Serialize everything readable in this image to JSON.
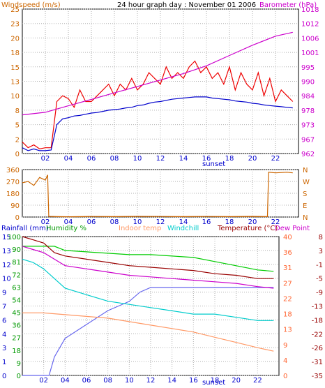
{
  "chart_data": [
    {
      "type": "line",
      "title": "24 hour graph day : November 01 2006",
      "left_axis": {
        "label": "Windspeed (m/s)",
        "color": "#cc6600",
        "ticks": [
          0,
          2,
          5,
          8,
          10,
          13,
          15,
          18,
          20,
          23,
          25
        ],
        "range": [
          0,
          25
        ]
      },
      "right_axis": {
        "label": "Barometer (hPa)",
        "color": "#cc00cc",
        "ticks": [
          962,
          967,
          973,
          978,
          984,
          990,
          995,
          1001,
          1006,
          1012,
          1018
        ],
        "range": [
          962,
          1018
        ]
      },
      "x_ticks": [
        "02",
        "04",
        "06",
        "08",
        "10",
        "12",
        "14",
        "16",
        "18",
        "20",
        "22"
      ],
      "x_annotation": "sunset",
      "grid": true,
      "series": [
        {
          "name": "Windspeed",
          "color": "#ee0000",
          "x": [
            0,
            0.5,
            1,
            1.5,
            2,
            2.5,
            3,
            3.5,
            4,
            4.5,
            5,
            5.5,
            6,
            6.5,
            7,
            7.5,
            8,
            8.5,
            9,
            9.5,
            10,
            10.5,
            11,
            11.5,
            12,
            12.5,
            13,
            13.5,
            14,
            14.5,
            15,
            15.5,
            16,
            16.5,
            17,
            17.5,
            18,
            18.5,
            19,
            19.5,
            20,
            20.5,
            21,
            21.5,
            22,
            22.5,
            23,
            23.5
          ],
          "y": [
            2,
            1,
            1.5,
            0.8,
            1,
            1,
            9,
            10,
            9.5,
            8,
            11,
            9,
            9,
            10,
            11,
            12,
            10,
            12,
            11,
            13,
            11,
            12,
            14,
            13,
            12,
            15,
            13,
            14,
            13,
            15,
            16,
            14,
            15,
            13,
            14,
            12,
            15,
            11,
            14,
            12,
            11,
            14,
            10,
            13,
            9,
            11,
            10,
            9
          ]
        },
        {
          "name": "Windspeed average",
          "color": "#0000cc",
          "x": [
            0,
            0.5,
            1,
            1.5,
            2,
            2.5,
            3,
            3.5,
            4,
            4.5,
            5,
            5.5,
            6,
            6.5,
            7,
            7.5,
            8,
            8.5,
            9,
            9.5,
            10,
            10.5,
            11,
            11.5,
            12,
            12.5,
            13,
            13.5,
            14,
            14.5,
            15,
            15.5,
            16,
            16.5,
            17,
            17.5,
            18,
            18.5,
            19,
            19.5,
            20,
            20.5,
            21,
            21.5,
            22,
            22.5,
            23,
            23.5
          ],
          "y": [
            1,
            0.5,
            0.8,
            0.5,
            0.5,
            0.6,
            5,
            6,
            6.2,
            6.5,
            6.6,
            6.8,
            7,
            7.1,
            7.3,
            7.5,
            7.6,
            7.7,
            7.9,
            8,
            8.3,
            8.4,
            8.7,
            8.9,
            9,
            9.2,
            9.4,
            9.5,
            9.6,
            9.7,
            9.8,
            9.8,
            9.8,
            9.6,
            9.5,
            9.4,
            9.3,
            9.1,
            9,
            8.9,
            8.7,
            8.6,
            8.4,
            8.3,
            8.2,
            8.1,
            8,
            7.9
          ]
        },
        {
          "name": "Barometer",
          "color": "#cc00cc",
          "axis": "right",
          "x": [
            0,
            2,
            4,
            6,
            8,
            10,
            12,
            14,
            16,
            18,
            20,
            22,
            23.5
          ],
          "y": [
            977,
            978,
            980.5,
            983,
            985.5,
            988,
            990.5,
            993,
            996,
            1000,
            1004,
            1007.5,
            1009
          ]
        }
      ]
    },
    {
      "type": "line",
      "left_axis": {
        "ticks": [
          0,
          90,
          180,
          270,
          360
        ],
        "range": [
          0,
          360
        ]
      },
      "right_axis": {
        "ticks": [
          "N",
          "W",
          "S",
          "E",
          "N"
        ]
      },
      "x_ticks": [
        "02",
        "04",
        "06",
        "08",
        "10",
        "12",
        "14",
        "16",
        "18",
        "20",
        "22"
      ],
      "grid": true,
      "series": [
        {
          "name": "Wind direction",
          "color": "#cc6600",
          "x": [
            0,
            0.5,
            1,
            1.5,
            2,
            2.2,
            2.3,
            3,
            4,
            6,
            8,
            10,
            12,
            14,
            16,
            18,
            20,
            21.3,
            21.4,
            22,
            23,
            23.5
          ],
          "y": [
            260,
            270,
            240,
            300,
            280,
            320,
            5,
            3,
            2,
            4,
            3,
            5,
            4,
            3,
            4,
            3,
            5,
            3,
            340,
            335,
            340,
            335
          ]
        }
      ]
    },
    {
      "type": "line",
      "legend": [
        "Rainfall (mm)",
        "Humidity %",
        "Indoor temp",
        "Windchill",
        "Temperature (°C)",
        "Dew Point"
      ],
      "legend_colors": [
        "#0000cc",
        "#009900",
        "#ff9966",
        "#00cccc",
        "#990000",
        "#cc00cc"
      ],
      "axis_left_rain": {
        "ticks": [
          0,
          1,
          3,
          4,
          6,
          7,
          9,
          10,
          12,
          13,
          15
        ],
        "color": "#0000cc",
        "range": [
          0,
          15
        ]
      },
      "axis_left_humidity": {
        "ticks": [
          0,
          9,
          18,
          27,
          36,
          45,
          54,
          63,
          72,
          81,
          90,
          100
        ],
        "color": "#009900"
      },
      "axis_right_indoor": {
        "ticks": [
          0,
          4,
          9,
          13,
          18,
          22,
          27,
          31,
          36,
          40
        ],
        "color": "#ff6633"
      },
      "axis_right_temp": {
        "ticks": [
          8,
          3,
          -1,
          -5,
          -9,
          -13,
          -18,
          -22,
          -26,
          -31,
          -35
        ],
        "color": "#990000"
      },
      "x_ticks": [
        "02",
        "04",
        "06",
        "08",
        "10",
        "12",
        "14",
        "16",
        "18",
        "20",
        "22"
      ],
      "x_annotation": "sunset",
      "grid": true,
      "series": [
        {
          "name": "Rainfall",
          "color": "#6666ee",
          "x": [
            0,
            2.5,
            3,
            4,
            6,
            8,
            10,
            11,
            12,
            14,
            16,
            18,
            20,
            22,
            23.5
          ],
          "y": [
            0,
            0,
            2,
            4,
            5.5,
            7,
            8,
            9,
            9.5,
            9.5,
            9.5,
            9.5,
            9.5,
            9.5,
            9.5
          ]
        },
        {
          "name": "Humidity",
          "color": "#00cc00",
          "x": [
            0,
            2,
            3,
            4,
            6,
            8,
            10,
            12,
            14,
            16,
            18,
            20,
            22,
            23.5
          ],
          "y": [
            93,
            93,
            93,
            90,
            89,
            88,
            87,
            87,
            86,
            85,
            82,
            79,
            76,
            75
          ]
        },
        {
          "name": "Indoor temp",
          "color": "#ff9966",
          "x": [
            0,
            2,
            4,
            6,
            8,
            10,
            12,
            14,
            16,
            18,
            20,
            22,
            23.5
          ],
          "y": [
            18,
            18,
            17.5,
            17,
            16.5,
            15.5,
            14.5,
            13.5,
            12.5,
            11,
            9.5,
            8,
            7
          ]
        },
        {
          "name": "Windchill",
          "color": "#00cccc",
          "x": [
            0,
            1,
            2,
            3,
            4,
            6,
            8,
            10,
            12,
            14,
            16,
            18,
            20,
            22,
            23.5
          ],
          "y": [
            1,
            0,
            -2,
            -5,
            -8,
            -10,
            -12,
            -13,
            -14,
            -15,
            -16,
            -16,
            -17,
            -18,
            -18
          ]
        },
        {
          "name": "Temperature",
          "color": "#990000",
          "x": [
            0,
            1,
            2,
            3,
            4,
            6,
            8,
            10,
            12,
            14,
            16,
            18,
            20,
            22,
            23.5
          ],
          "y": [
            8,
            7,
            6,
            3,
            2,
            1,
            0,
            -1,
            -1.5,
            -2,
            -2.5,
            -3.5,
            -4,
            -5,
            -5
          ]
        },
        {
          "name": "Dew Point",
          "color": "#cc00cc",
          "x": [
            0,
            1,
            2,
            3,
            4,
            6,
            8,
            10,
            12,
            14,
            16,
            18,
            20,
            22,
            23.5
          ],
          "y": [
            5,
            4,
            3,
            1,
            -1,
            -2,
            -3,
            -4,
            -4.5,
            -5,
            -5.5,
            -6,
            -6.5,
            -7.5,
            -8
          ]
        }
      ]
    }
  ]
}
